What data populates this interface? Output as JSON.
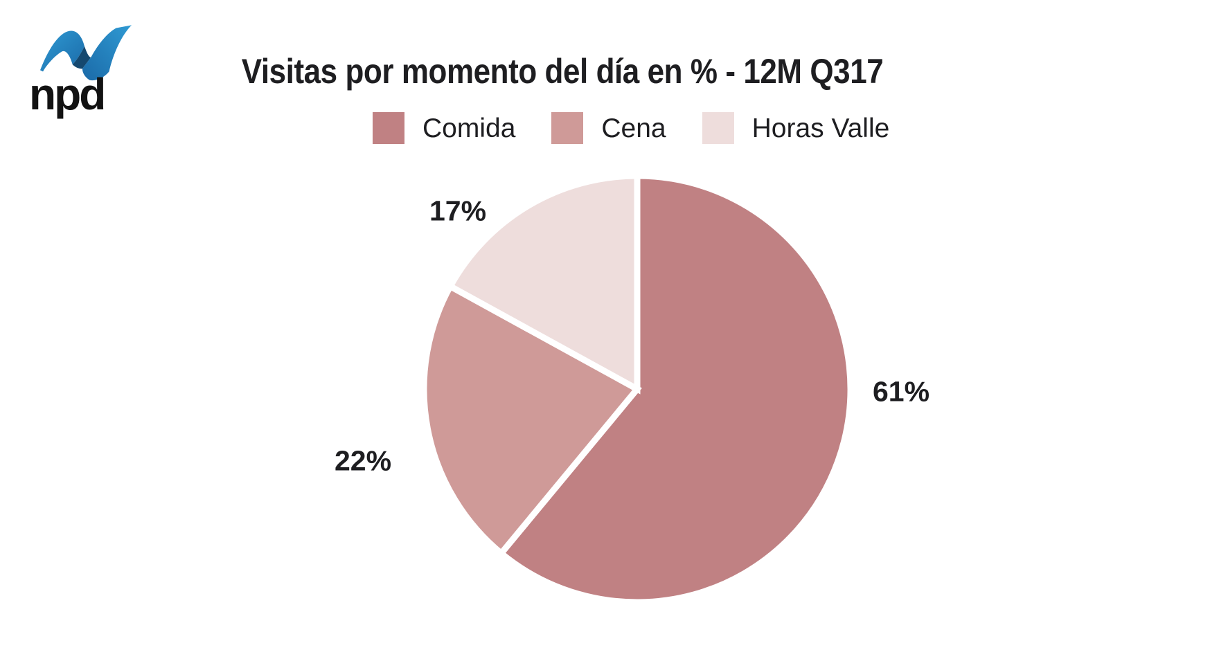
{
  "logo": {
    "brand": "npd",
    "icon": "npd-ribbon-icon",
    "icon_colors": {
      "light_blue": "#2f9ad3",
      "mid_blue": "#2380bf",
      "dark_blue": "#15486f"
    }
  },
  "chart_data": {
    "type": "pie",
    "title": "Visitas por momento del día en % - 12M Q317",
    "categories": [
      "Comida",
      "Cena",
      "Horas Valle"
    ],
    "values": [
      61,
      22,
      17
    ],
    "labels": [
      "61%",
      "22%",
      "17%"
    ],
    "colors": [
      "#c08183",
      "#cf9a98",
      "#eedddc"
    ],
    "gap_color": "#ffffff",
    "start_angle_deg": 0,
    "direction": "clockwise",
    "legend_position": "top",
    "text_color": "#1e1e21",
    "background_color": "#ffffff"
  }
}
